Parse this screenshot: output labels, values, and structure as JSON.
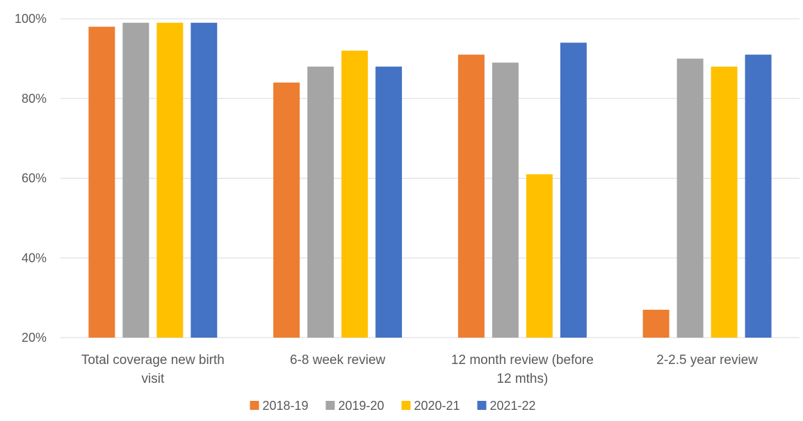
{
  "chart_data": {
    "type": "bar",
    "title": "",
    "xlabel": "",
    "ylabel": "",
    "ylim": [
      20,
      100
    ],
    "y_ticks": [
      20,
      40,
      60,
      80,
      100
    ],
    "y_tick_labels": [
      "20%",
      "40%",
      "60%",
      "80%",
      "100%"
    ],
    "grid": true,
    "legend_position": "bottom",
    "categories": [
      [
        "Total coverage new birth",
        "visit"
      ],
      [
        "6-8 week review"
      ],
      [
        "12 month review (before",
        "12 mths)"
      ],
      [
        "2-2.5 year review"
      ]
    ],
    "series": [
      {
        "name": "2018-19",
        "color": "#ED7D31",
        "values": [
          98,
          84,
          91,
          27
        ]
      },
      {
        "name": "2019-20",
        "color": "#A5A5A5",
        "values": [
          99,
          88,
          89,
          90
        ]
      },
      {
        "name": "2020-21",
        "color": "#FFC000",
        "values": [
          99,
          92,
          61,
          88
        ]
      },
      {
        "name": "2021-22",
        "color": "#4472C4",
        "values": [
          99,
          88,
          94,
          91
        ]
      }
    ],
    "gridline_color": "#D9D9D9",
    "text_color": "#595959"
  }
}
